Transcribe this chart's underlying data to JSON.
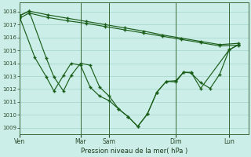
{
  "xlabel": "Pression niveau de la mer( hPa )",
  "bg_color": "#cceee8",
  "grid_color": "#aad8d0",
  "line_color": "#1a5e1a",
  "ylim": [
    1008.5,
    1018.7
  ],
  "yticks": [
    1009,
    1010,
    1011,
    1012,
    1013,
    1014,
    1015,
    1016,
    1017,
    1018
  ],
  "xtick_labels": [
    "Ven",
    "Mar",
    "Sam",
    "Dim",
    "Lun"
  ],
  "vline_color": "#3a6a3a",
  "s1_x": [
    0,
    0.5,
    1.5,
    2.5,
    3.5,
    4.5,
    5.5,
    6.5,
    7.5,
    8.5,
    9.5,
    10.5,
    11.5
  ],
  "s1_y": [
    1017.5,
    1017.9,
    1017.55,
    1017.3,
    1017.1,
    1016.85,
    1016.6,
    1016.35,
    1016.1,
    1015.85,
    1015.6,
    1015.35,
    1015.4
  ],
  "s2_x": [
    0,
    0.5,
    1.5,
    2.5,
    3.5,
    4.5,
    5.5,
    6.5,
    7.5,
    8.5,
    9.5,
    10.5,
    11.5
  ],
  "s2_y": [
    1017.7,
    1018.05,
    1017.75,
    1017.5,
    1017.25,
    1017.0,
    1016.75,
    1016.5,
    1016.2,
    1015.95,
    1015.7,
    1015.45,
    1015.55
  ],
  "s3_x": [
    0,
    0.8,
    1.4,
    1.8,
    2.3,
    2.7,
    3.2,
    3.7,
    4.2,
    4.7,
    5.2,
    5.7,
    6.2,
    6.7,
    7.2,
    7.7,
    8.2,
    8.6,
    9.0,
    9.5,
    10.0,
    10.5,
    11.0,
    11.5
  ],
  "s3_y": [
    1017.6,
    1014.45,
    1012.95,
    1011.85,
    1013.05,
    1014.0,
    1013.85,
    1012.15,
    1011.45,
    1011.1,
    1010.45,
    1009.85,
    1009.1,
    1010.05,
    1011.75,
    1012.6,
    1012.65,
    1013.3,
    1013.25,
    1012.5,
    1012.05,
    1013.15,
    1015.05,
    1015.45
  ],
  "s4_x": [
    0,
    0.5,
    1.4,
    1.8,
    2.3,
    2.7,
    3.2,
    3.7,
    4.2,
    4.7,
    5.2,
    5.7,
    6.2,
    6.7,
    7.2,
    7.7,
    8.2,
    8.6,
    9.0,
    9.5,
    11.0,
    11.5
  ],
  "s4_y": [
    1017.7,
    1018.05,
    1014.4,
    1012.95,
    1011.85,
    1013.05,
    1014.0,
    1013.85,
    1012.15,
    1011.45,
    1010.45,
    1009.85,
    1009.1,
    1010.05,
    1011.75,
    1012.6,
    1012.55,
    1013.3,
    1013.3,
    1012.05,
    1015.05,
    1015.45
  ],
  "vline_positions": [
    0,
    3.2,
    4.7,
    8.2,
    11.0
  ],
  "xlim": [
    0,
    12.0
  ]
}
